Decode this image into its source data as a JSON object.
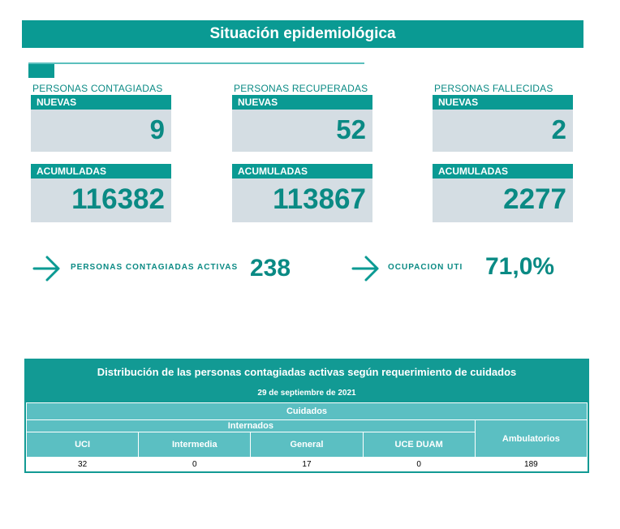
{
  "header": {
    "title": "Situación epidemiológica"
  },
  "cards": [
    {
      "category": "PERSONAS CONTAGIADAS",
      "nuevas_label": "NUEVAS",
      "nuevas": "9",
      "acumuladas_label": "ACUMULADAS",
      "acumuladas": "116382"
    },
    {
      "category": "PERSONAS RECUPERADAS",
      "nuevas_label": "NUEVAS",
      "nuevas": "52",
      "acumuladas_label": "ACUMULADAS",
      "acumuladas": "113867"
    },
    {
      "category": "PERSONAS FALLECIDAS",
      "nuevas_label": "NUEVAS",
      "nuevas": "2",
      "acumuladas_label": "ACUMULADAS",
      "acumuladas": "2277"
    }
  ],
  "kpis": {
    "activas_label": "PERSONAS CONTAGIADAS ACTIVAS",
    "activas_value": "238",
    "uti_label": "OCUPACION UTI",
    "uti_value": "71,0%"
  },
  "table": {
    "title": "Distribución de las personas contagiadas activas según requerimiento de cuidados",
    "date": "29 de septiembre de 2021",
    "group_header": "Cuidados",
    "subgroup_header": "Internados",
    "columns": [
      "UCI",
      "Intermedia",
      "General",
      "UCE DUAM",
      "Ambulatorios"
    ],
    "values": [
      "32",
      "0",
      "17",
      "0",
      "189"
    ]
  },
  "colors": {
    "primary": "#0a9a93",
    "light": "#5bbfc2",
    "card_bg": "#d4dde3"
  }
}
